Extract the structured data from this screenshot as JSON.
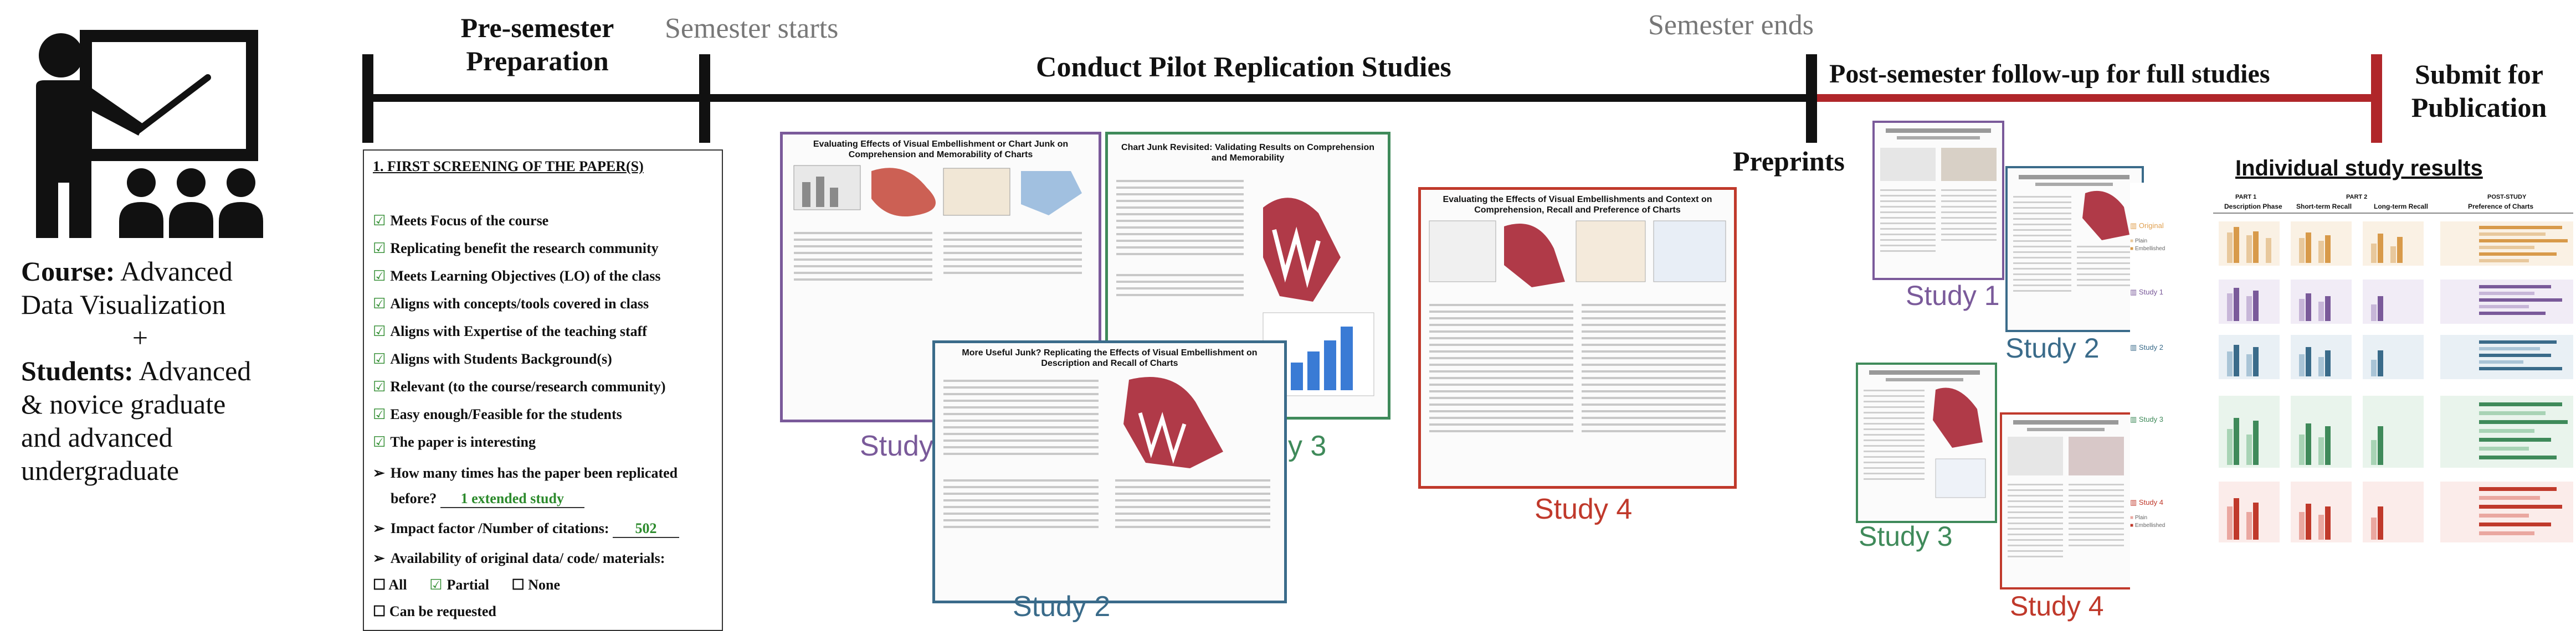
{
  "course": {
    "line1_bold": "Course:",
    "line1": " Advanced",
    "line2": "Data Visualization",
    "plus": "+",
    "line3_bold": "Students:",
    "line3": " Advanced",
    "line4": "& novice graduate",
    "line5": "and advanced",
    "line6": "undergraduate"
  },
  "timeline": {
    "pre_semester": "Pre-semester\nPreparation",
    "semester_starts": "Semester starts",
    "conduct": "Conduct Pilot Replication Studies",
    "semester_ends": "Semester ends",
    "post_semester": "Post-semester follow-up for full studies",
    "submit": "Submit for\nPublication",
    "preprints": "Preprints",
    "individual_results": "Individual study results"
  },
  "checklist": {
    "title": "1.   FIRST SCREENING OF THE PAPER(S)",
    "items": [
      "Meets Focus of the course",
      "Replicating benefit the research community",
      "Meets Learning Objectives (LO) of the class",
      "Aligns with concepts/tools covered in class",
      "Aligns with Expertise of the teaching staff",
      "Aligns with Students Background(s)",
      "Relevant (to the course/research community)",
      "Easy enough/Feasible for the students",
      "The paper is interesting"
    ],
    "replicated_q": "How many times has the paper been replicated",
    "replicated_q2": "before?",
    "replicated_val": "1 extended study",
    "impact_q": "Impact factor /Number of citations:",
    "impact_val": "502",
    "availability_q": "Availability of original data/ code/ materials:",
    "opt_all": "All",
    "opt_partial": "Partial",
    "opt_none": "None",
    "opt_request": "Can be requested"
  },
  "papers": {
    "p1_title": "Evaluating Effects of Visual Embellishment or Chart Junk on Comprehension and Memorability of Charts",
    "p2_title": "More Useful Junk? Replicating the Effects of Visual Embellishment on Description and Recall of Charts",
    "p3_title": "Chart Junk Revisited: Validating Results on Comprehension and Memorability",
    "p4_title": "Evaluating the Effects of Visual Embellishments and Context on Comprehension, Recall and Preference of Charts"
  },
  "studies": {
    "s1": "Study 1",
    "s2": "Study 2",
    "s3": "Study 3",
    "s4": "Study 4"
  },
  "results": {
    "part1": "PART 1",
    "part1_sub": "Description Phase",
    "part2": "PART 2",
    "part2_a": "Short-term Recall",
    "part2_b": "Long-term Recall",
    "post": "POST-STUDY",
    "post_sub": "Preference of Charts",
    "original": "Original",
    "study1": "Study 1",
    "study2": "Study 2",
    "study3": "Study 3",
    "study4": "Study 4",
    "plain": "Plain",
    "embellished": "Embellished"
  },
  "colors": {
    "purple": "#7a5a9a",
    "blue": "#3a6b8a",
    "green": "#3f8a5a",
    "red": "#c0392b",
    "orange": "#e0a050",
    "timeline_red": "#b0262a"
  }
}
